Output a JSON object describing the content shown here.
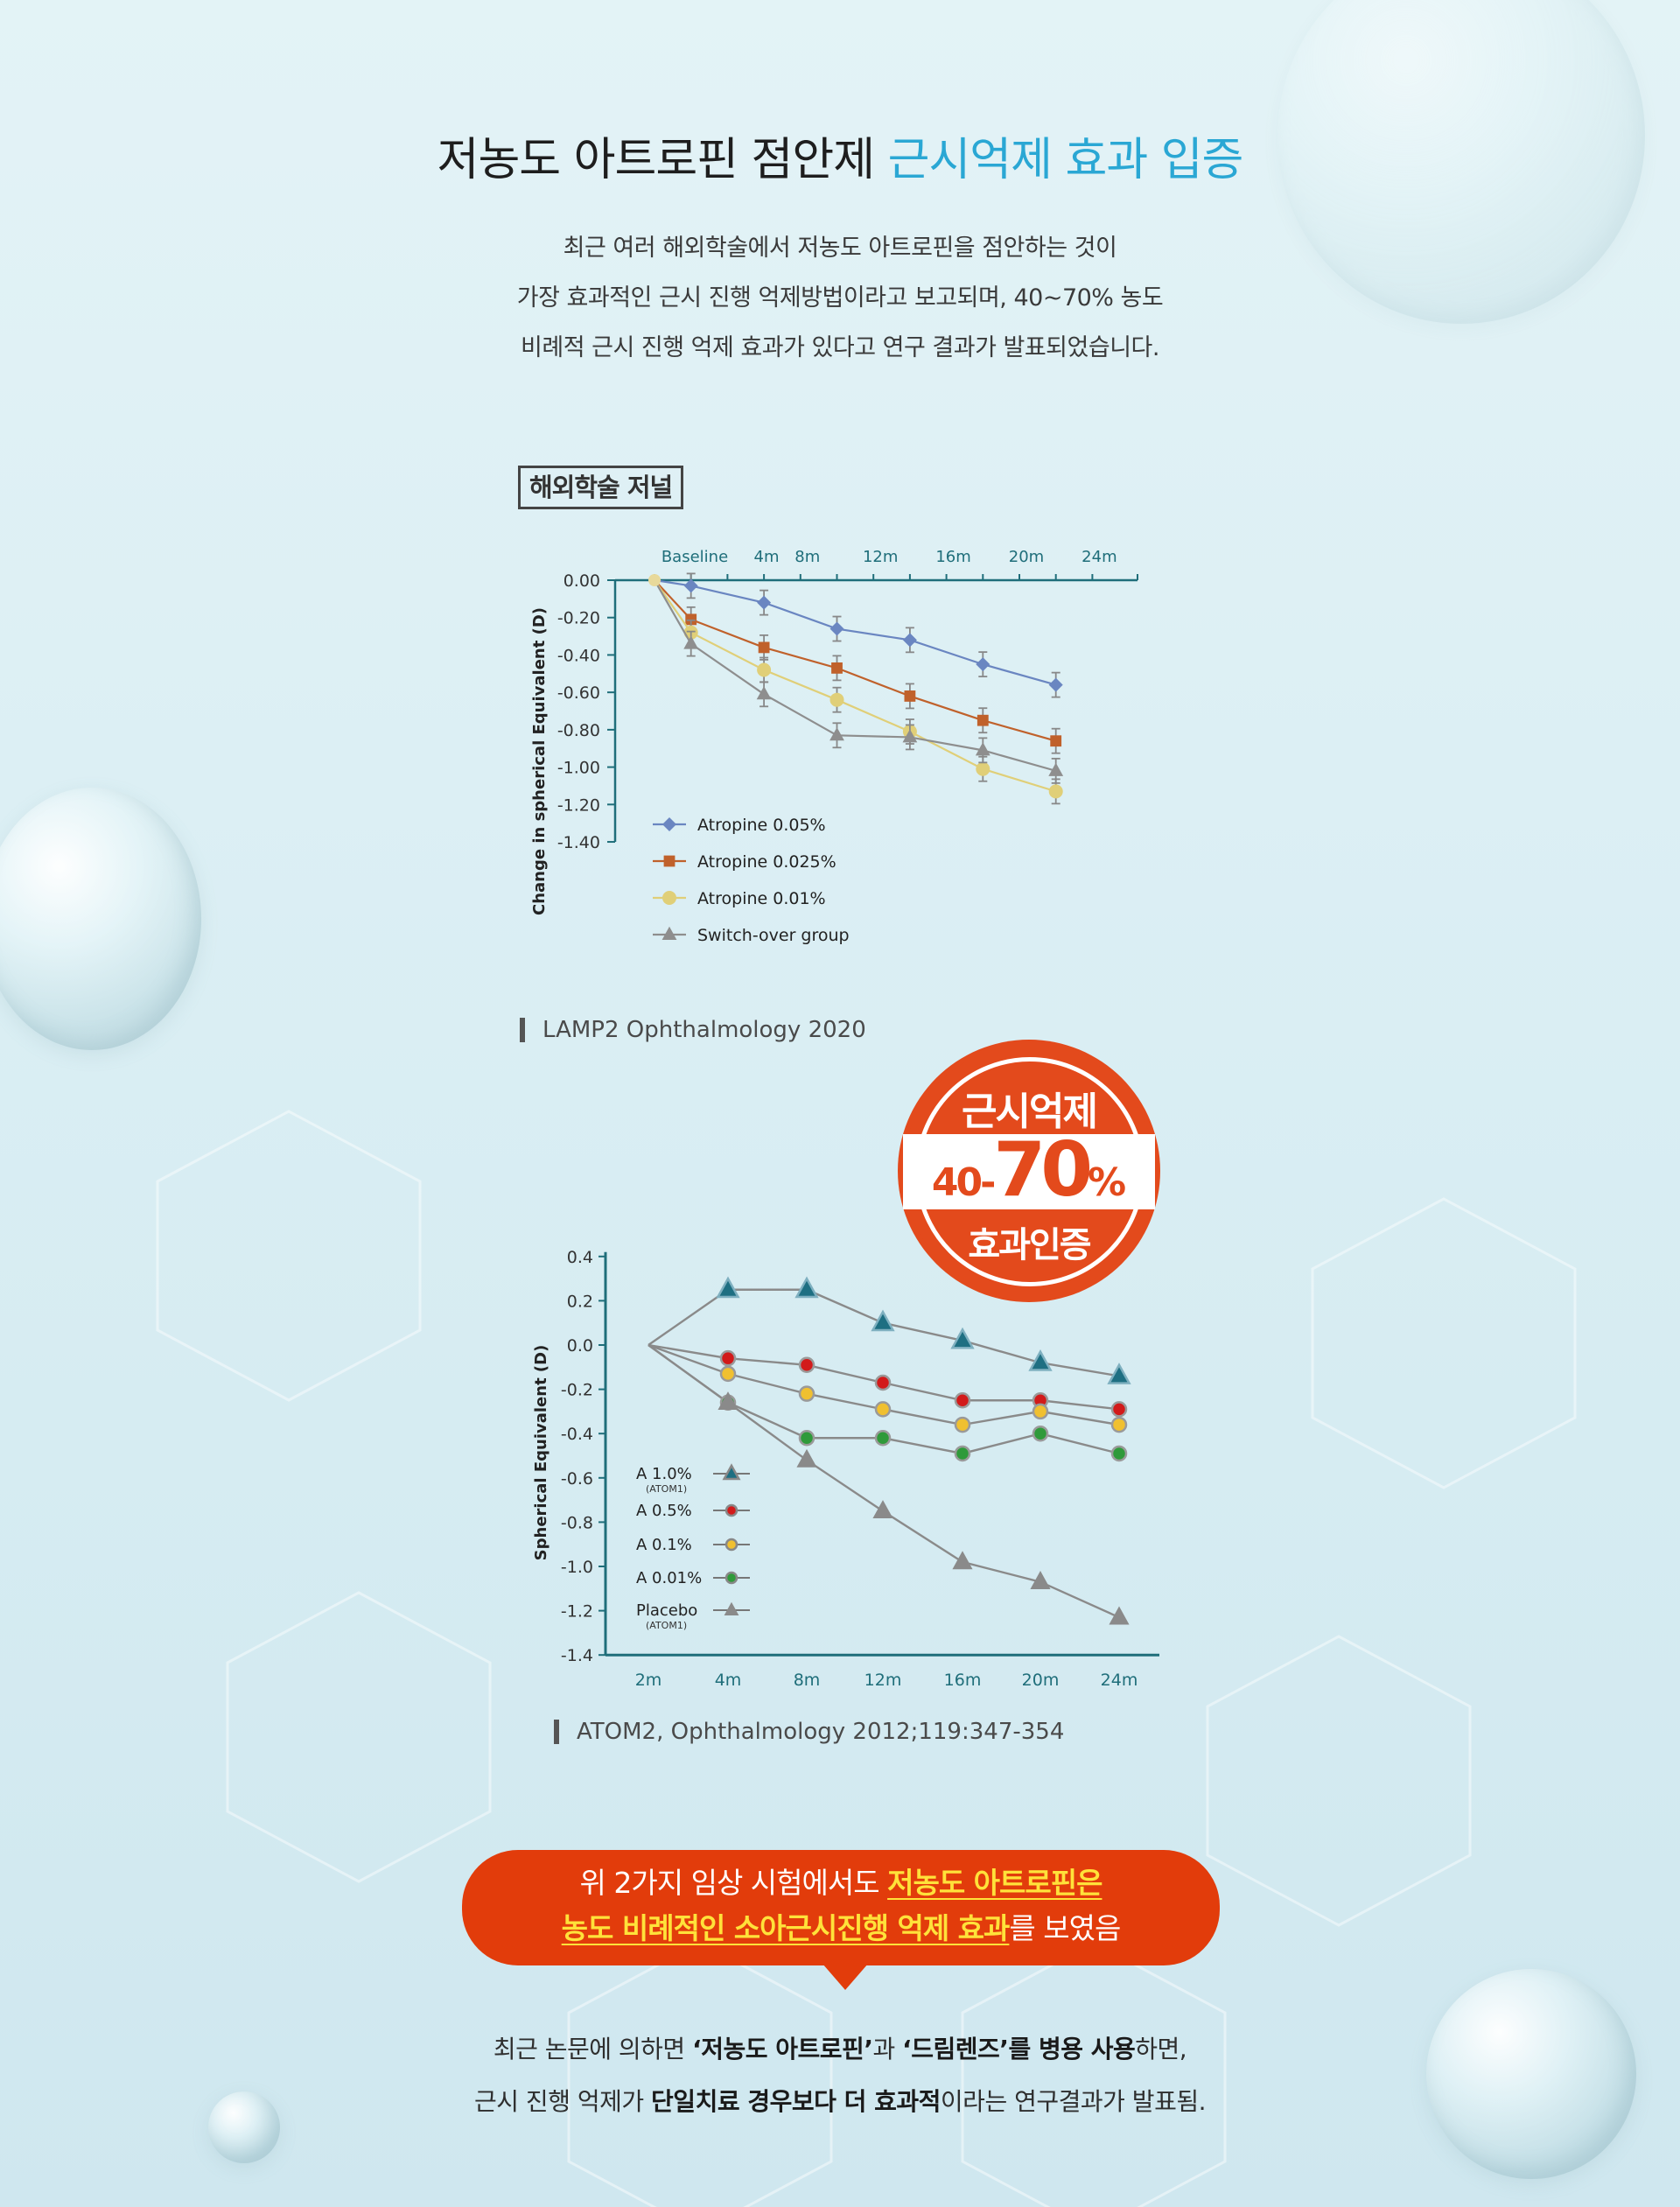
{
  "heading": {
    "main": "저농도 아트로핀 점안제",
    "accent": "근시억제 효과 입증"
  },
  "intro": {
    "line1": "최근 여러 해외학술에서 저농도 아트로핀을 점안하는 것이",
    "line2": "가장 효과적인 근시 진행 억제방법이라고 보고되며, 40~70% 농도",
    "line3": "비례적 근시 진행 억제 효과가 있다고 연구 결과가 발표되었습니다."
  },
  "journal_tag": "해외학술 저널",
  "sources": {
    "first": "LAMP2 Ophthalmology 2020",
    "second": "ATOM2, Ophthalmology 2012;119:347-354"
  },
  "stamp": {
    "top": "근시억제",
    "small": "40-",
    "big": "70",
    "pct": "%",
    "bottom": "효과인증"
  },
  "banner": {
    "l1_pre": "위 2가지 임상 시험에서도 ",
    "l1_hl": "저농도 아트로핀은",
    "l2_hl": "농도 비례적인 소아근시진행 억제 효과",
    "l2_post": "를 보였음"
  },
  "outro": {
    "l1_a": "최근 논문에 의하면 ",
    "l1_b": "‘저농도 아트로핀’",
    "l1_c": "과 ",
    "l1_d": "‘드림렌즈’를 병용 사용",
    "l1_e": "하면,",
    "l2_a": "근시 진행 억제가 ",
    "l2_b": "단일치료 경우보다 더 효과적",
    "l2_c": "이라는 연구결과가 발표됨."
  },
  "colors": {
    "accent": "#2aa7d4",
    "banner": "#e23c0b",
    "highlight": "#ffe23a",
    "axis": "#1f6e7a"
  },
  "chart_data": [
    {
      "type": "line",
      "title": "",
      "xlabel": "",
      "ylabel": "Change in spherical Equivalent (D)",
      "categories": [
        "Baseline",
        "4m",
        "8m",
        "12m",
        "16m",
        "20m",
        "24m"
      ],
      "x": [
        0,
        2,
        4,
        6,
        8,
        10,
        12,
        14,
        16,
        18,
        20,
        22,
        24
      ],
      "ylim": [
        -1.4,
        0
      ],
      "yticks": [
        "0.00",
        "-0.20",
        "-0.40",
        "-0.60",
        "-0.80",
        "-1.00",
        "-1.20",
        "-1.40"
      ],
      "legend": "bottom-left",
      "series": [
        {
          "name": "Atropine 0.05%",
          "color": "#6a86c1",
          "marker": "diamond",
          "points": [
            [
              0,
              0
            ],
            [
              2,
              -0.03
            ],
            [
              6,
              -0.12
            ],
            [
              10,
              -0.26
            ],
            [
              14,
              -0.32
            ],
            [
              18,
              -0.45
            ],
            [
              22,
              -0.56
            ]
          ]
        },
        {
          "name": "Atropine 0.025%",
          "color": "#c0612b",
          "marker": "square",
          "points": [
            [
              0,
              0
            ],
            [
              2,
              -0.21
            ],
            [
              6,
              -0.36
            ],
            [
              10,
              -0.47
            ],
            [
              14,
              -0.62
            ],
            [
              18,
              -0.75
            ],
            [
              22,
              -0.86
            ]
          ]
        },
        {
          "name": "Atropine 0.01%",
          "color": "#e0cf78",
          "marker": "circle",
          "points": [
            [
              0,
              0
            ],
            [
              2,
              -0.28
            ],
            [
              6,
              -0.48
            ],
            [
              10,
              -0.64
            ],
            [
              14,
              -0.81
            ],
            [
              18,
              -1.01
            ],
            [
              22,
              -1.13
            ]
          ]
        },
        {
          "name": "Switch-over group",
          "color": "#8e8e8e",
          "marker": "triangle",
          "points": [
            [
              0,
              0
            ],
            [
              2,
              -0.34
            ],
            [
              6,
              -0.61
            ],
            [
              10,
              -0.83
            ],
            [
              14,
              -0.84
            ],
            [
              18,
              -0.91
            ],
            [
              22,
              -1.02
            ]
          ]
        }
      ]
    },
    {
      "type": "line",
      "title": "",
      "xlabel": "",
      "ylabel": "Spherical Equivalent (D)",
      "categories": [
        "2m",
        "4m",
        "8m",
        "12m",
        "16m",
        "20m",
        "24m"
      ],
      "ylim": [
        -1.4,
        0.4
      ],
      "yticks": [
        "0.4",
        "0.2",
        "0.0",
        "-0.2",
        "-0.4",
        "-0.6",
        "-0.8",
        "-1.0",
        "-1.2",
        "-1.4"
      ],
      "legend": "bottom-left",
      "series": [
        {
          "name": "A 1.0%",
          "note": "(ATOM1)",
          "color": "#1e6f82",
          "marker": "triangle",
          "values": [
            0.0,
            0.25,
            0.25,
            0.1,
            0.02,
            -0.08,
            -0.14
          ]
        },
        {
          "name": "A 0.5%",
          "color": "#d21a1a",
          "marker": "circle",
          "values": [
            0.0,
            -0.06,
            -0.09,
            -0.17,
            -0.25,
            -0.25,
            -0.29
          ]
        },
        {
          "name": "A 0.1%",
          "color": "#f0c030",
          "marker": "circle",
          "values": [
            0.0,
            -0.13,
            -0.22,
            -0.29,
            -0.36,
            -0.3,
            -0.36
          ]
        },
        {
          "name": "A 0.01%",
          "color": "#2f9a3a",
          "marker": "circle",
          "values": [
            0.0,
            -0.26,
            -0.42,
            -0.42,
            -0.49,
            -0.4,
            -0.49
          ]
        },
        {
          "name": "Placebo",
          "note": "(ATOM1)",
          "color": "#8a8a8a",
          "marker": "triangle",
          "values": [
            0.0,
            -0.26,
            -0.52,
            -0.75,
            -0.98,
            -1.07,
            -1.23
          ]
        }
      ]
    }
  ]
}
